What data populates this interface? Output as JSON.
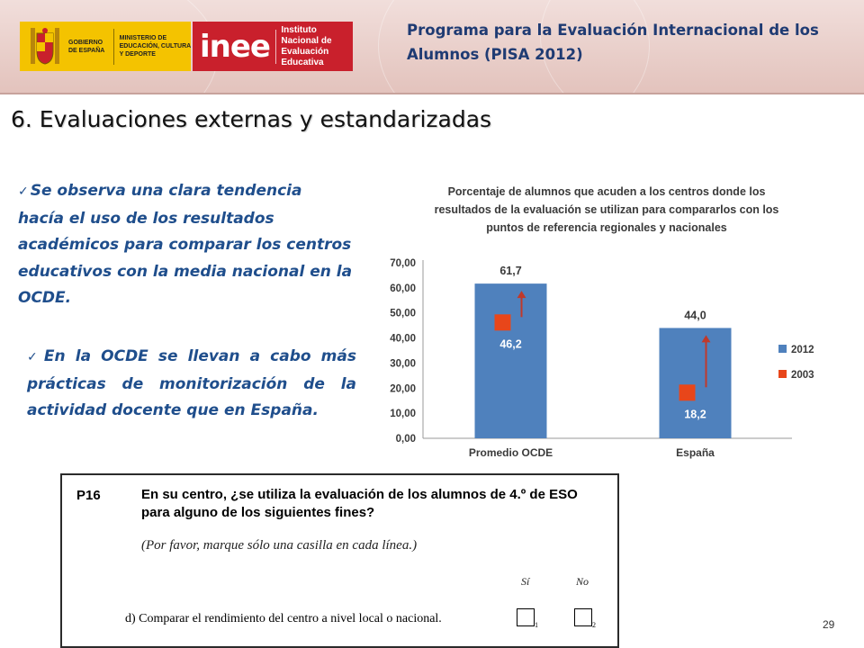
{
  "header": {
    "gov_logo_text": "GOBIERNO DE ESPAÑA",
    "ministry_text": "MINISTERIO DE EDUCACIÓN, CULTURA Y DEPORTE",
    "inee_word": "inee",
    "inee_name": "Instituto Nacional de Evaluación Educativa",
    "program_title": "Programa para la Evaluación Internacional de los Alumnos (PISA 2012)"
  },
  "slide": {
    "title": "6. Evaluaciones externas y estandarizadas",
    "bullets": [
      "Se observa una clara tendencia hacía el uso de los resultados académicos para comparar los centros educativos con la media nacional en la OCDE.",
      "En la OCDE se llevan a cabo más prácticas de monitorización de la actividad docente que en España."
    ],
    "page_number": "29"
  },
  "chart_data": {
    "type": "bar",
    "title": "Porcentaje de alumnos que acuden a los centros donde los resultados de la evaluación se utilizan para compararlos con los puntos de referencia regionales y nacionales",
    "categories": [
      "Promedio OCDE",
      "España"
    ],
    "series": [
      {
        "name": "2012",
        "values": [
          61.7,
          44.0
        ],
        "labels": [
          "61,7",
          "44,0"
        ],
        "color": "#4f81bd",
        "mark": "bar"
      },
      {
        "name": "2003",
        "values": [
          46.2,
          18.2
        ],
        "labels": [
          "46,2",
          "18,2"
        ],
        "color": "#e8461a",
        "mark": "square"
      }
    ],
    "yticks": [
      "0,00",
      "10,00",
      "20,00",
      "30,00",
      "40,00",
      "50,00",
      "60,00",
      "70,00"
    ],
    "ylim": [
      0,
      70
    ],
    "legend": "right",
    "annotations": "arrows from 2003 value up to 2012 value",
    "arrow_color": "#c0392b"
  },
  "question": {
    "id": "P16",
    "text": "En su centro, ¿se utiliza la evaluación de los alumnos de 4.º de ESO para alguno de los siguientes fines?",
    "note": "(Por favor, marque sólo una casilla en cada línea.)",
    "option_si": "Sí",
    "option_no": "No",
    "item": "d)  Comparar el rendimiento del centro a nivel local o nacional.",
    "index_1": "1",
    "index_2": "2"
  }
}
